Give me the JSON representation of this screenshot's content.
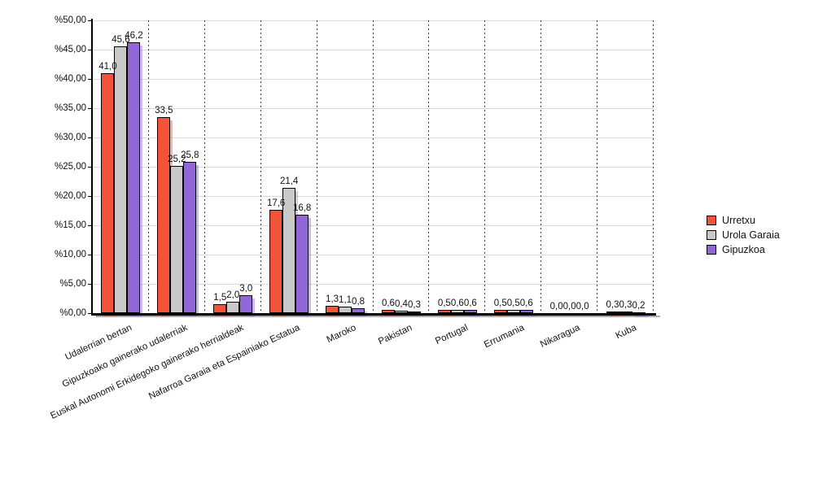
{
  "chart_data": {
    "type": "bar",
    "title": "",
    "categories": [
      "Udalerrian bertan",
      "Gipuzkoako gainerako udalerriak",
      "Euskal Autonomi Erkidegoko gainerako herrialdeak",
      "Nafarroa Garaia eta Espainiako Estatua",
      "Maroko",
      "Pakistan",
      "Portugal",
      "Errumania",
      "Nikaragua",
      "Kuba"
    ],
    "series": [
      {
        "name": "Urretxu",
        "color": "#f4533a",
        "shadow_color": "rgba(244,83,58,0.45)",
        "values": [
          41.0,
          33.5,
          1.5,
          17.6,
          1.3,
          0.6,
          0.5,
          0.5,
          0.0,
          0.3
        ]
      },
      {
        "name": "Urola Garaia",
        "color": "#c9c9c9",
        "shadow_color": "rgba(150,150,150,0.45)",
        "values": [
          45.6,
          25.2,
          2.0,
          21.4,
          1.1,
          0.4,
          0.6,
          0.5,
          0.0,
          0.3
        ]
      },
      {
        "name": "Gipuzkoa",
        "color": "#9166d6",
        "shadow_color": "rgba(145,102,214,0.45)",
        "values": [
          46.2,
          25.8,
          3.0,
          16.8,
          0.8,
          0.3,
          0.6,
          0.6,
          0.0,
          0.2
        ]
      }
    ],
    "value_labels": {
      "Urretxu": [
        "41,0",
        "33,5",
        "1,5",
        "17,6",
        "1,3",
        "0,6",
        "0,5",
        "0,5",
        "0,0",
        "0,3"
      ],
      "Urola Garaia": [
        "45,6",
        "25,2",
        "2,0",
        "21,4",
        "1,1",
        "0,4",
        "0,6",
        "0,5",
        "0,0",
        "0,3"
      ],
      "Gipuzkoa": [
        "46,2",
        "25,8",
        "3,0",
        "16,8",
        "0,8",
        "0,3",
        "0,6",
        "0,6",
        "0,0",
        "0,2"
      ]
    },
    "y_axis": {
      "ticks": [
        0,
        5,
        10,
        15,
        20,
        25,
        30,
        35,
        40,
        45,
        50
      ],
      "tick_labels": [
        "%0,00",
        "%5,00",
        "%10,00",
        "%15,00",
        "%20,00",
        "%25,00",
        "%30,00",
        "%35,00",
        "%40,00",
        "%45,00",
        "%50,00"
      ],
      "tick_prefix": "%",
      "decimals": 2,
      "ylim": [
        0,
        50
      ]
    },
    "value_label_decimals": 1,
    "grid": true,
    "legend": {
      "position": "right",
      "entries": [
        "Urretxu",
        "Urola Garaia",
        "Gipuzkoa"
      ]
    }
  }
}
